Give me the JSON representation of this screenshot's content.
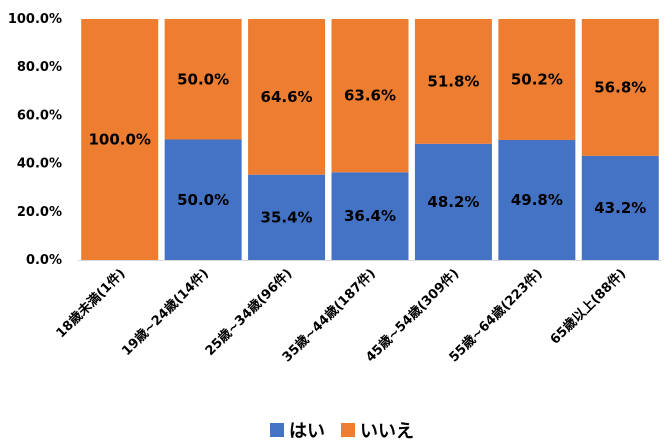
{
  "chart_data": {
    "type": "bar",
    "stacked": "percent",
    "categories": [
      "18歳未満(1件)",
      "19歳~24歳(14件)",
      "25歳~34歳(96件)",
      "35歳~44歳(187件)",
      "45歳~54歳(309件)",
      "55歳~64歳(223件)",
      "65歳以上(88件)"
    ],
    "series": [
      {
        "name": "はい",
        "color": "#4472C4",
        "values": [
          0,
          50.0,
          35.4,
          36.4,
          48.2,
          49.8,
          43.2
        ],
        "labels": [
          "",
          "50.0%",
          "35.4%",
          "36.4%",
          "48.2%",
          "49.8%",
          "43.2%"
        ]
      },
      {
        "name": "いいえ",
        "color": "#ED7D31",
        "values": [
          100.0,
          50.0,
          64.6,
          63.6,
          51.8,
          50.2,
          56.8
        ],
        "labels": [
          "100.0%",
          "50.0%",
          "64.6%",
          "63.6%",
          "51.8%",
          "50.2%",
          "56.8%"
        ]
      }
    ],
    "yticks": [
      "0.0%",
      "20.0%",
      "40.0%",
      "60.0%",
      "80.0%",
      "100.0%"
    ],
    "ylim": [
      0,
      100
    ],
    "grid": false,
    "legend_position": "bottom"
  }
}
